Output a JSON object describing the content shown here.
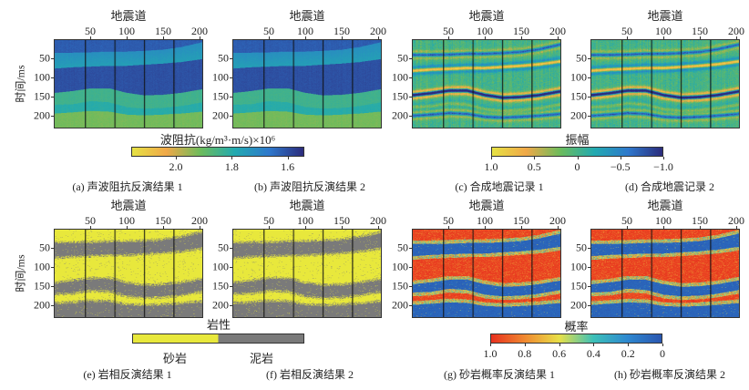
{
  "chart_data": {
    "type": "heatmap",
    "common": {
      "xlabel": "地震道",
      "ylabel": "时间/ms",
      "xticks": [
        "50",
        "100",
        "150",
        "200"
      ],
      "xtick_values": [
        50,
        100,
        150,
        200
      ],
      "yticks": [
        "50",
        "100",
        "150",
        "200"
      ],
      "ytick_values": [
        50,
        100,
        150,
        200
      ],
      "xlim": [
        0,
        205
      ],
      "ylim": [
        0,
        233
      ],
      "well_traces": [
        42,
        83,
        124,
        165
      ],
      "horizons_trace": [
        0,
        25,
        50,
        75,
        100,
        125,
        150,
        175,
        205
      ],
      "horizons_ms": [
        [
          33,
          33,
          32,
          30,
          30,
          28,
          25,
          18,
          5
        ],
        [
          75,
          72,
          70,
          68,
          68,
          65,
          62,
          58,
          50
        ],
        [
          140,
          135,
          128,
          128,
          140,
          147,
          145,
          140,
          130
        ],
        [
          172,
          170,
          162,
          165,
          178,
          182,
          180,
          175,
          165
        ],
        [
          195,
          192,
          188,
          190,
          198,
          200,
          198,
          195,
          190
        ]
      ]
    },
    "panels": [
      {
        "id": "a",
        "kind": "impedance",
        "caption": "(a) 声波阻抗反演结果 1",
        "seed": 1
      },
      {
        "id": "b",
        "kind": "impedance",
        "caption": "(b) 声波阻抗反演结果 2",
        "seed": 2
      },
      {
        "id": "c",
        "kind": "seismic",
        "caption": "(c) 合成地震记录 1",
        "seed": 3
      },
      {
        "id": "d",
        "kind": "seismic",
        "caption": "(d) 合成地震记录 2",
        "seed": 4
      },
      {
        "id": "e",
        "kind": "facies",
        "caption": "(e) 岩相反演结果 1",
        "seed": 5
      },
      {
        "id": "f",
        "kind": "facies",
        "caption": "(f) 岩相反演结果 2",
        "seed": 6
      },
      {
        "id": "g",
        "kind": "probability",
        "caption": "(g) 砂岩概率反演结果 1",
        "seed": 7
      },
      {
        "id": "h",
        "kind": "probability",
        "caption": "(h) 砂岩概率反演结果 2",
        "seed": 8
      }
    ],
    "colorbars": [
      {
        "id": "impedance",
        "title": "波阻抗(kg/m³·m/s)×10⁶",
        "range": [
          2.16,
          1.54
        ],
        "ticks": [
          "2.0",
          "1.8",
          "1.6"
        ],
        "tick_values": [
          2.0,
          1.8,
          1.6
        ],
        "colors": [
          "#e6e244",
          "#f0a848",
          "#6cbc5c",
          "#22aab0",
          "#2e78cc",
          "#2c2c7c"
        ]
      },
      {
        "id": "amplitude",
        "title": "振幅",
        "range": [
          1.0,
          -1.0
        ],
        "ticks": [
          "1.0",
          "0.5",
          "0",
          "−0.5",
          "−1.0"
        ],
        "tick_values": [
          1.0,
          0.5,
          0,
          -0.5,
          -1.0
        ],
        "colors": [
          "#e6e244",
          "#f0a848",
          "#6cbc5c",
          "#22aab0",
          "#2e78cc",
          "#2c2c7c"
        ]
      },
      {
        "id": "lithology",
        "title": "岩性",
        "categories": [
          "砂岩",
          "泥岩"
        ],
        "colors": [
          "#e8e83c",
          "#7a7a7a"
        ]
      },
      {
        "id": "probability",
        "title": "概率",
        "range": [
          1.0,
          0
        ],
        "ticks": [
          "1.0",
          "0.8",
          "0.6",
          "0.4",
          "0.2",
          "0"
        ],
        "tick_values": [
          1.0,
          0.8,
          0.6,
          0.4,
          0.2,
          0
        ],
        "colors": [
          "#e8301e",
          "#f08a30",
          "#e8e048",
          "#3cc0b8",
          "#2e88d0",
          "#2a56b0"
        ]
      }
    ]
  }
}
